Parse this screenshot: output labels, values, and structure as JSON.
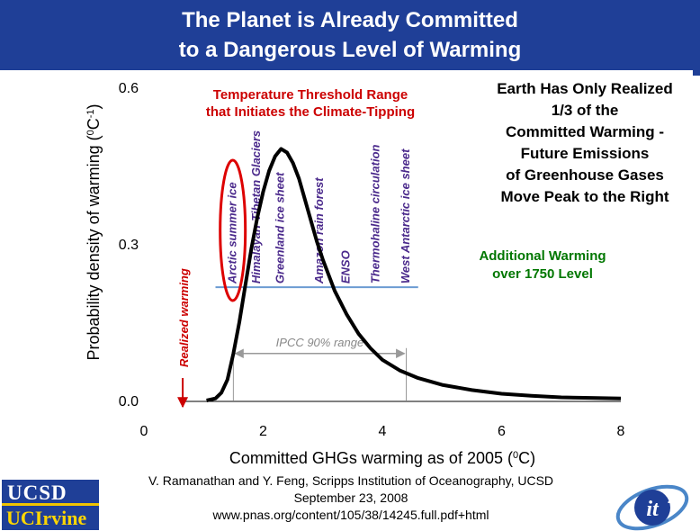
{
  "header": {
    "title_line_1": "The Planet is Already Committed",
    "title_line_2": "to a Dangerous Level of Warming",
    "background_color": "#1f3f97"
  },
  "chart_data": {
    "type": "line",
    "xlabel": "Committed GHGs warming as of 2005 (0C)",
    "ylabel": "Probability density of warming (0C-1)",
    "xlim": [
      0,
      8
    ],
    "ylim": [
      0,
      0.6
    ],
    "x_ticks": [
      0,
      2,
      4,
      6,
      8
    ],
    "x_tick_labels": [
      "0",
      "2",
      "4",
      "6",
      "8"
    ],
    "y_ticks": [
      0.0,
      0.3,
      0.6
    ],
    "y_tick_labels": [
      "0.0",
      "0.3",
      "0.6"
    ],
    "grid": false,
    "series": [
      {
        "color": "#000000",
        "x": [
          1.05,
          1.2,
          1.3,
          1.4,
          1.5,
          1.6,
          1.7,
          1.8,
          1.9,
          2.0,
          2.1,
          2.2,
          2.3,
          2.4,
          2.5,
          2.6,
          2.7,
          2.8,
          2.9,
          3.0,
          3.2,
          3.4,
          3.6,
          3.8,
          4.0,
          4.3,
          4.6,
          5.0,
          5.5,
          6.0,
          6.5,
          7.0,
          7.5,
          8.0
        ],
        "y": [
          0.0,
          0.004,
          0.015,
          0.04,
          0.09,
          0.15,
          0.22,
          0.29,
          0.35,
          0.4,
          0.44,
          0.468,
          0.482,
          0.475,
          0.455,
          0.425,
          0.385,
          0.345,
          0.305,
          0.27,
          0.21,
          0.165,
          0.128,
          0.1,
          0.078,
          0.057,
          0.043,
          0.03,
          0.02,
          0.013,
          0.009,
          0.006,
          0.005,
          0.004
        ]
      }
    ],
    "realized_warming": {
      "x": 0.65,
      "label": "Realized warming",
      "color": "#cc0000"
    },
    "ipcc_range": {
      "x_start": 1.5,
      "x_end": 4.4,
      "y": 0.09,
      "label": "IPCC 90% range",
      "color": "#999999"
    },
    "tipping_threshold_line": {
      "x_start": 1.2,
      "x_end": 4.6,
      "y": 0.217,
      "color": "#6b9bd2"
    },
    "arctic_ellipse_color": "#dd0000",
    "tipping_elements": [
      {
        "label": "Arctic summer ice",
        "x": 1.55,
        "color": "#4b2a8c"
      },
      {
        "label": "Himalayan-Tibetan Glaciers",
        "x": 1.95,
        "color": "#4b2a8c"
      },
      {
        "label": "Greenland ice sheet",
        "x": 2.35,
        "color": "#4b2a8c"
      },
      {
        "label": "Amazon rain forest",
        "x": 3.0,
        "color": "#4b2a8c"
      },
      {
        "label": "ENSO",
        "x": 3.45,
        "color": "#4b2a8c"
      },
      {
        "label": "Thermohaline circulation",
        "x": 3.95,
        "color": "#4b2a8c"
      },
      {
        "label": "West Antarctic ice sheet",
        "x": 4.45,
        "color": "#4b2a8c"
      }
    ]
  },
  "annotations": {
    "threshold_line_1": "Temperature Threshold Range",
    "threshold_line_2": "that Initiates the Climate-Tipping",
    "earth_note_lines": [
      "Earth Has Only Realized",
      "1/3 of the",
      "Committed Warming -",
      "Future Emissions",
      "of Greenhouse Gases",
      "Move Peak to the Right"
    ],
    "additional_line_1": "Additional Warming",
    "additional_line_2": "over 1750 Level"
  },
  "citation": {
    "line_1": "V. Ramanathan and Y. Feng, Scripps Institution of Oceanography, UCSD",
    "line_2": "September 23, 2008",
    "line_3": "www.pnas.org/content/105/38/14245.full.pdf+html"
  },
  "logos": {
    "ucsd": "UCSD",
    "uc_irvine": "UCIrvine",
    "it2": "it"
  }
}
